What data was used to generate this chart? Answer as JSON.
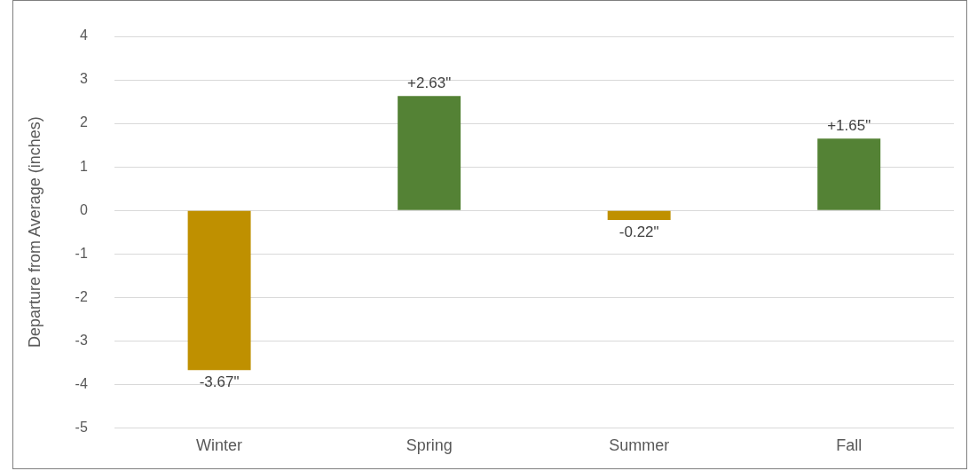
{
  "chart_data": {
    "type": "bar",
    "ylabel": "Departure from Average (inches)",
    "categories": [
      "Winter",
      "Spring",
      "Summer",
      "Fall"
    ],
    "values": [
      -3.67,
      2.63,
      -0.22,
      1.65
    ],
    "colors": [
      "#bf9000",
      "#548235",
      "#bf9000",
      "#548235"
    ],
    "value_labels": [
      "-3.67\"",
      "+2.63\"",
      "-0.22\"",
      "+1.65\""
    ],
    "ylim": [
      -5,
      4
    ],
    "yticks": [
      -5,
      -4,
      -3,
      -2,
      -1,
      0,
      1,
      2,
      3,
      4
    ],
    "grid": "y",
    "legend": false
  }
}
